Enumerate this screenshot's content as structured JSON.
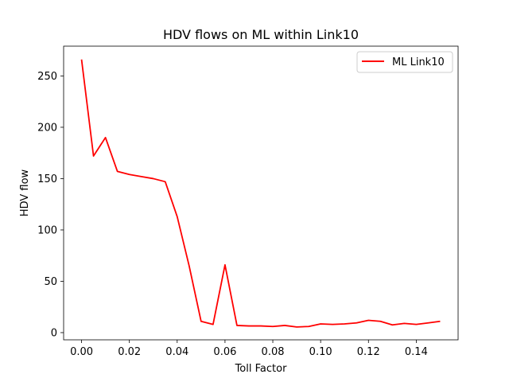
{
  "chart_data": {
    "type": "line",
    "title": "HDV flows on ML within Link10",
    "xlabel": "Toll Factor",
    "ylabel": "HDV flow",
    "xlim": [
      -0.0075,
      0.1575
    ],
    "ylim": [
      -7,
      279
    ],
    "xticks": [
      0.0,
      0.02,
      0.04,
      0.06,
      0.08,
      0.1,
      0.12,
      0.14
    ],
    "xtick_labels": [
      "0.00",
      "0.02",
      "0.04",
      "0.06",
      "0.08",
      "0.10",
      "0.12",
      "0.14"
    ],
    "yticks": [
      0,
      50,
      100,
      150,
      200,
      250
    ],
    "ytick_labels": [
      "0",
      "50",
      "100",
      "150",
      "200",
      "250"
    ],
    "grid": false,
    "legend_position": "top-right",
    "series": [
      {
        "name": "ML Link10",
        "color": "#ff0000",
        "x": [
          0.0,
          0.005,
          0.01,
          0.015,
          0.02,
          0.025,
          0.03,
          0.035,
          0.04,
          0.045,
          0.05,
          0.055,
          0.06,
          0.065,
          0.07,
          0.075,
          0.08,
          0.085,
          0.09,
          0.095,
          0.1,
          0.105,
          0.11,
          0.115,
          0.12,
          0.125,
          0.13,
          0.135,
          0.14,
          0.145,
          0.15
        ],
        "y": [
          266,
          172,
          190,
          157,
          154,
          152,
          150,
          147,
          113,
          65,
          11,
          8,
          66,
          7,
          6.5,
          6.5,
          6,
          7,
          5.5,
          6,
          8.5,
          8,
          8.5,
          9.5,
          12,
          11,
          7.5,
          9,
          8,
          9.5,
          11
        ]
      }
    ]
  }
}
